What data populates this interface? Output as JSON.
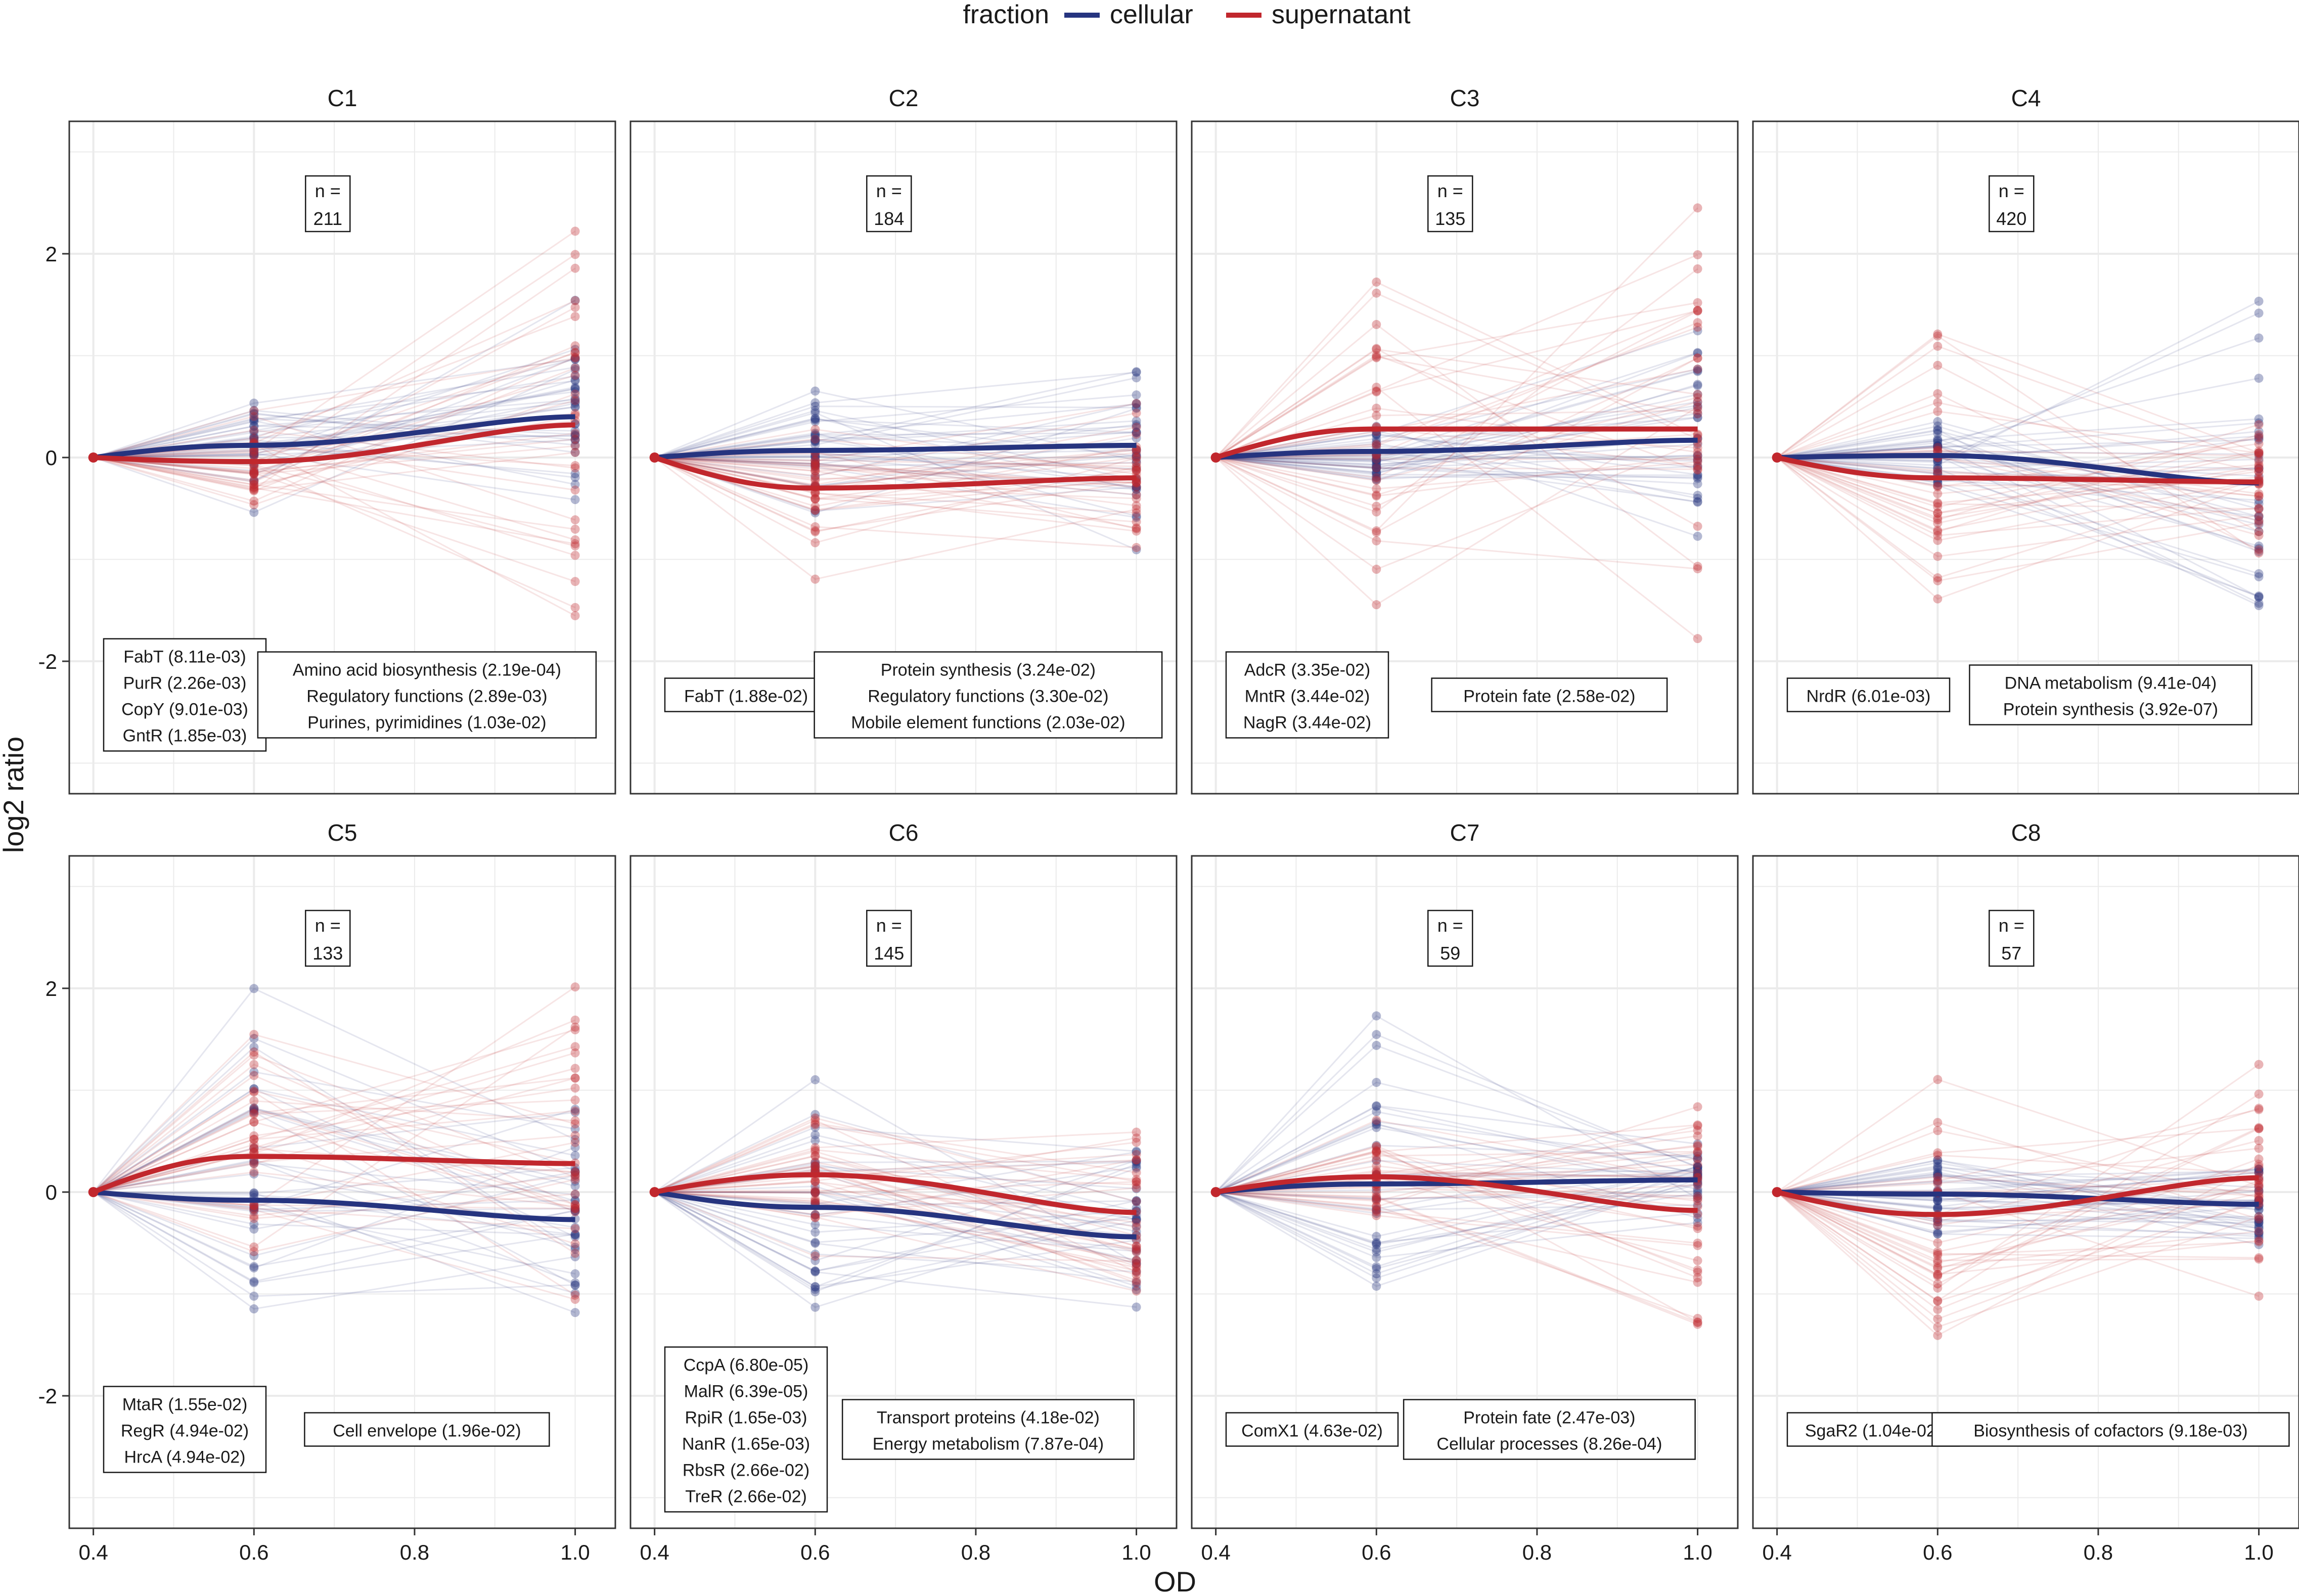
{
  "chart_data": {
    "type": "line",
    "xlabel": "OD",
    "ylabel": "log2 ratio",
    "xlim": [
      0.37,
      1.05
    ],
    "ylim": [
      -3.3,
      3.3
    ],
    "x_ticks": [
      0.4,
      0.6,
      0.8,
      1.0
    ],
    "x_tick_labels": [
      "0.4",
      "0.6",
      "0.8",
      "1.0"
    ],
    "y_ticks": [
      -2,
      0,
      2
    ],
    "y_tick_labels": [
      "-2",
      "0",
      "2"
    ],
    "x_points": [
      0.4,
      0.6,
      1.0
    ],
    "legend": {
      "title": "fraction",
      "position": "top",
      "items": [
        {
          "name": "cellular",
          "color": "#26347f"
        },
        {
          "name": "supernatant",
          "color": "#c1272d"
        }
      ]
    },
    "panels": [
      {
        "title": "C1",
        "n_label": "n =",
        "n": "211",
        "mean": {
          "cellular": [
            0,
            0.12,
            0.4
          ],
          "supernatant": [
            0,
            -0.04,
            0.32
          ]
        },
        "spread": {
          "cellular": [
            0,
            0.8,
            1.6
          ],
          "supernatant": [
            0,
            0.7,
            2.8
          ]
        },
        "regulators": [
          "FabT (8.11e-03)",
          "PurR (2.26e-03)",
          "CopY (9.01e-03)",
          "GntR (1.85e-03)"
        ],
        "functions": [
          "Amino acid biosynthesis (2.19e-04)",
          "Regulatory functions (2.89e-03)",
          "Purines, pyrimidines (1.03e-02)"
        ]
      },
      {
        "title": "C2",
        "n_label": "n =",
        "n": "184",
        "mean": {
          "cellular": [
            0,
            0.07,
            0.12
          ],
          "supernatant": [
            0,
            -0.3,
            -0.2
          ]
        },
        "spread": {
          "cellular": [
            0,
            0.9,
            1.3
          ],
          "supernatant": [
            0,
            1.1,
            0.95
          ]
        },
        "regulators": [
          "FabT (1.88e-02)"
        ],
        "functions": [
          "Protein synthesis (3.24e-02)",
          "Regulatory functions (3.30e-02)",
          "Mobile element functions (2.03e-02)"
        ]
      },
      {
        "title": "C3",
        "n_label": "n =",
        "n": "135",
        "mean": {
          "cellular": [
            0,
            0.06,
            0.17
          ],
          "supernatant": [
            0,
            0.28,
            0.28
          ]
        },
        "spread": {
          "cellular": [
            0,
            0.5,
            1.4
          ],
          "supernatant": [
            0,
            2.2,
            2.7
          ]
        },
        "regulators": [
          "AdcR (3.35e-02)",
          "MntR (3.44e-02)",
          "NagR (3.44e-02)"
        ],
        "functions": [
          "Protein fate (2.58e-02)"
        ]
      },
      {
        "title": "C4",
        "n_label": "n =",
        "n": "420",
        "mean": {
          "cellular": [
            0,
            0.02,
            -0.25
          ],
          "supernatant": [
            0,
            -0.2,
            -0.24
          ]
        },
        "spread": {
          "cellular": [
            0,
            0.6,
            2.5
          ],
          "supernatant": [
            0,
            2.1,
            1.1
          ]
        },
        "regulators": [
          "NrdR (6.01e-03)"
        ],
        "functions": [
          "DNA metabolism (9.41e-04)",
          "Protein synthesis (3.92e-07)"
        ]
      },
      {
        "title": "C5",
        "n_label": "n =",
        "n": "133",
        "mean": {
          "cellular": [
            0,
            -0.08,
            -0.27
          ],
          "supernatant": [
            0,
            0.35,
            0.28
          ]
        },
        "spread": {
          "cellular": [
            0,
            2.7,
            1.6
          ],
          "supernatant": [
            0,
            2.1,
            2.8
          ]
        },
        "regulators": [
          "MtaR (1.55e-02)",
          "RegR (4.94e-02)",
          "HrcA (4.94e-02)"
        ],
        "functions": [
          "Cell envelope (1.96e-02)"
        ]
      },
      {
        "title": "C6",
        "n_label": "n =",
        "n": "145",
        "mean": {
          "cellular": [
            0,
            -0.15,
            -0.44
          ],
          "supernatant": [
            0,
            0.17,
            -0.2
          ]
        },
        "spread": {
          "cellular": [
            0,
            1.6,
            1.7
          ],
          "supernatant": [
            0,
            1.1,
            1.3
          ]
        },
        "regulators": [
          "CcpA (6.80e-05)",
          "MalR (6.39e-05)",
          "RpiR (1.65e-03)",
          "NanR (1.65e-03)",
          "RbsR (2.66e-02)",
          "TreR (2.66e-02)"
        ],
        "functions": [
          "Transport proteins (4.18e-02)",
          "Energy metabolism (7.87e-04)"
        ]
      },
      {
        "title": "C7",
        "n_label": "n =",
        "n": "59",
        "mean": {
          "cellular": [
            0,
            0.08,
            0.12
          ],
          "supernatant": [
            0,
            0.15,
            -0.18
          ]
        },
        "spread": {
          "cellular": [
            0,
            2.3,
            0.5
          ],
          "supernatant": [
            0,
            0.8,
            2.1
          ]
        },
        "regulators": [
          "ComX1 (4.63e-02)"
        ],
        "functions": [
          "Protein fate (2.47e-03)",
          "Cellular processes (8.26e-04)"
        ]
      },
      {
        "title": "C8",
        "n_label": "n =",
        "n": "57",
        "mean": {
          "cellular": [
            0,
            -0.02,
            -0.12
          ],
          "supernatant": [
            0,
            -0.22,
            0.14
          ]
        },
        "spread": {
          "cellular": [
            0,
            0.5,
            0.8
          ],
          "supernatant": [
            0,
            1.9,
            2.0
          ]
        },
        "regulators": [
          "SgaR2 (1.04e-02)"
        ],
        "functions": [
          "Biosynthesis of cofactors (9.18e-03)"
        ]
      }
    ]
  }
}
